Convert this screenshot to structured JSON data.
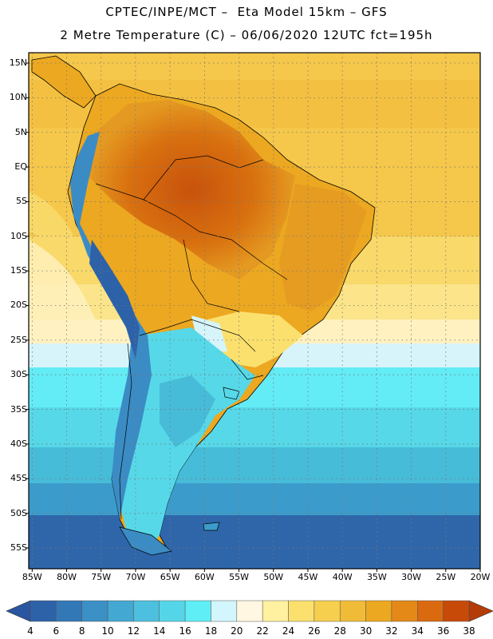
{
  "title": {
    "line1": "CPTEC/INPE/MCT –  Eta Model 15km – GFS",
    "line2": "2 Metre Temperature (C) – 06/06/2020 12UTC fct=195h"
  },
  "map": {
    "region": "South America",
    "lat_labels": [
      "15N",
      "10N",
      "5N",
      "EQ",
      "5S",
      "10S",
      "15S",
      "20S",
      "25S",
      "30S",
      "35S",
      "40S",
      "45S",
      "50S",
      "55S"
    ],
    "lat_values": [
      15,
      10,
      5,
      0,
      -5,
      -10,
      -15,
      -20,
      -25,
      -30,
      -35,
      -40,
      -45,
      -50,
      -55
    ],
    "lon_labels": [
      "85W",
      "80W",
      "75W",
      "70W",
      "65W",
      "60W",
      "55W",
      "50W",
      "45W",
      "40W",
      "35W",
      "30W",
      "25W",
      "20W"
    ],
    "lon_values": [
      -85,
      -80,
      -75,
      -70,
      -65,
      -60,
      -55,
      -50,
      -45,
      -40,
      -35,
      -30,
      -25,
      -20
    ],
    "extent": {
      "lon_min": -85.5,
      "lon_max": -20,
      "lat_min": -58,
      "lat_max": 16.5
    }
  },
  "colorbar": {
    "labels": [
      "4",
      "6",
      "8",
      "10",
      "12",
      "14",
      "16",
      "18",
      "20",
      "22",
      "24",
      "26",
      "28",
      "30",
      "32",
      "34",
      "36",
      "38"
    ],
    "colors": [
      "#2e62a8",
      "#3378b6",
      "#3b90c6",
      "#43a8d2",
      "#4cc0de",
      "#55d6e8",
      "#60eef6",
      "#d2f6fb",
      "#fff7e2",
      "#fff1a0",
      "#fbe06e",
      "#f6cf4e",
      "#f0bc38",
      "#eca820",
      "#e48818",
      "#da6a10",
      "#c84a08"
    ],
    "under_color": "#2a55a0",
    "over_color": "#b43c08"
  }
}
